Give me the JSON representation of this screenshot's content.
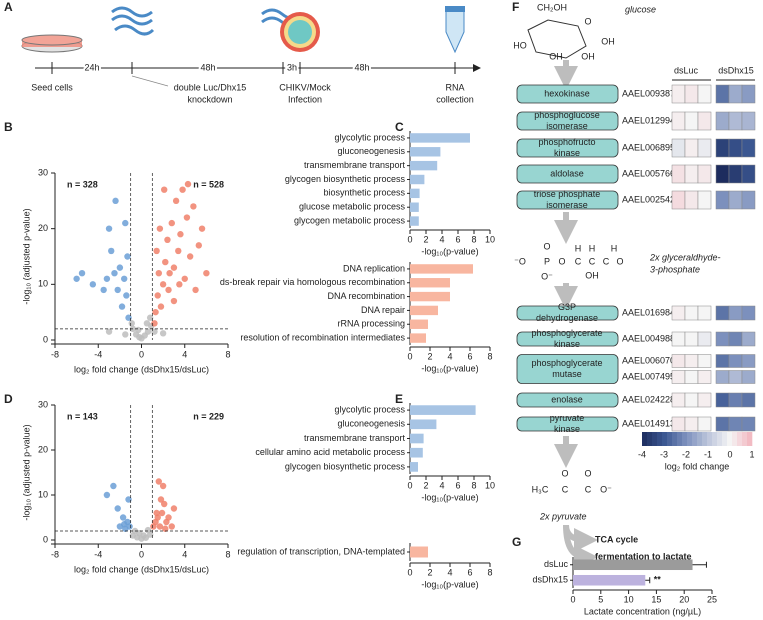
{
  "panel_labels": [
    "A",
    "B",
    "C",
    "D",
    "E",
    "F",
    "G"
  ],
  "timeline": {
    "steps": [
      [
        "Seed cells"
      ],
      [
        "double Luc/Dhx15",
        "knockdown"
      ],
      [
        "CHIKV/Mock",
        "Infection"
      ],
      [
        "RNA",
        "collection"
      ]
    ],
    "intervals": [
      "24h",
      "48h",
      "3h",
      "48h"
    ]
  },
  "pathway": {
    "glucose_atoms": [
      "CH₂OH",
      "O",
      "OH",
      "OH",
      "HO",
      "OH"
    ],
    "glucose": "glucose",
    "enzymes": [
      [
        "hexokinase"
      ],
      [
        "phosphoglucose",
        "isomerase"
      ],
      [
        "phosphofructo",
        "kinase"
      ],
      [
        "aldolase"
      ],
      [
        "triose phosphate",
        "isomerase"
      ],
      [
        "G3P",
        "dehydrogenase"
      ],
      [
        "phosphoglycerate",
        "kinase"
      ],
      [
        "phosphoglycerate",
        "mutase"
      ],
      [
        "enolase"
      ],
      [
        "pyruvate",
        "kinase"
      ]
    ],
    "g3p_atoms": [
      "O",
      "⁻O",
      "P",
      "O",
      "C",
      "C",
      "C",
      "H",
      "H",
      "H",
      "OH",
      "O",
      "O⁻"
    ],
    "g3p": [
      "2x glyceraldhyde-",
      "3-phosphate"
    ],
    "pyruvate_atoms": [
      "H₃C",
      "C",
      "C",
      "O",
      "O",
      "O⁻"
    ],
    "pyruvate": "2x pyruvate",
    "outputs": [
      "TCA cycle",
      "fermentation to lactate"
    ]
  },
  "chart_data": [
    {
      "type": "scatter",
      "xlabel": "log₂ fold change (dsDhx15/dsLuc)",
      "ylabel": "-log₁₀ (adjusted p-value)",
      "annotations": [
        "n = 328",
        "n = 528"
      ],
      "xlim": [
        -8,
        8
      ],
      "xticks": [
        -8,
        -4,
        0,
        4,
        8
      ],
      "ylim": [
        0,
        30
      ],
      "yticks": [
        0,
        10,
        20,
        30
      ],
      "vlines": [
        -1,
        1
      ],
      "hline": 2,
      "series": [
        {
          "color": "#bdbdbd",
          "x": [
            -0.8,
            -0.5,
            -0.2,
            0,
            0.3,
            0.6,
            0.9,
            -0.9,
            0.5,
            -0.3,
            1.2,
            -1.5,
            2,
            -3,
            0.8
          ],
          "y": [
            2,
            1,
            0.5,
            0.3,
            0.8,
            1.5,
            2.5,
            3,
            3,
            1.8,
            1.5,
            1,
            1.2,
            1.5,
            4
          ]
        },
        {
          "color": "#6b9fd6",
          "x": [
            -1.2,
            -1.4,
            -1.6,
            -1.8,
            -2,
            -2.2,
            -2.5,
            -2.8,
            -3,
            -3.2,
            -1.5,
            -4.5,
            -5.5,
            -6,
            -2.4,
            -1.3,
            -3.5
          ],
          "y": [
            4,
            8,
            11,
            6,
            13,
            9,
            12,
            16,
            20,
            11,
            21,
            10,
            12,
            11,
            25,
            15,
            9
          ]
        },
        {
          "color": "#f0806a",
          "x": [
            1.2,
            1.3,
            1.5,
            1.6,
            1.8,
            2,
            2.2,
            2.4,
            2.5,
            2.8,
            3,
            3.2,
            3.4,
            3.6,
            3.8,
            4,
            4.2,
            4.5,
            4.8,
            5,
            5.3,
            5.6,
            6,
            1.4,
            2.1,
            3,
            1.7,
            2.6,
            4.3,
            3.5
          ],
          "y": [
            3,
            5,
            8,
            12,
            6,
            10,
            14,
            18,
            9,
            21,
            13,
            25,
            16,
            19,
            27,
            11,
            22,
            15,
            24,
            9,
            17,
            20,
            12,
            16,
            27,
            7,
            20,
            12,
            28,
            10
          ]
        }
      ]
    },
    {
      "type": "bar",
      "orientation": "horizontal",
      "color": "#a7c4e4",
      "xlabel": "-log₁₀(p-value)",
      "xlim": [
        0,
        10
      ],
      "xticks": [
        0,
        2,
        4,
        6,
        8,
        10
      ],
      "categories": [
        "glycolytic process",
        "gluconeogenesis",
        "transmembrane transport",
        "glycogen biosynthetic process",
        "biosynthetic process",
        "glucose metabolic process",
        "glycogen metabolic process"
      ],
      "values": [
        7.5,
        3.8,
        3.4,
        1.8,
        1.2,
        1.1,
        1.1
      ]
    },
    {
      "type": "bar",
      "orientation": "horizontal",
      "color": "#f8b6a0",
      "xlabel": "-log₁₀(p-value)",
      "xlim": [
        0,
        8
      ],
      "xticks": [
        0,
        2,
        4,
        6,
        8
      ],
      "categories": [
        "DNA replication",
        "ds-break repair via homologous recombination",
        "DNA recombination",
        "DNA repair",
        "rRNA processing",
        "resolution of recombination intermediates"
      ],
      "values": [
        6.3,
        4,
        4,
        2.8,
        1.8,
        1.6
      ]
    },
    {
      "type": "scatter",
      "xlabel": "log₂ fold change (dsDhx15/dsLuc)",
      "ylabel": "-log₁₀ (adjusted p-value)",
      "annotations": [
        "n = 143",
        "n = 229"
      ],
      "xlim": [
        -8,
        8
      ],
      "xticks": [
        -8,
        -4,
        0,
        4,
        8
      ],
      "ylim": [
        0,
        30
      ],
      "yticks": [
        0,
        10,
        20,
        30
      ],
      "vlines": [
        -1,
        1
      ],
      "hline": 2,
      "series": [
        {
          "color": "#bdbdbd",
          "x": [
            -0.8,
            -0.4,
            0,
            0.4,
            0.8,
            -0.6,
            0.6,
            -0.2,
            0.2
          ],
          "y": [
            1,
            0.6,
            0.3,
            0.5,
            1.2,
            2,
            2.2,
            1.5,
            1
          ]
        },
        {
          "color": "#6b9fd6",
          "x": [
            -1.1,
            -1.3,
            -1.5,
            -1.7,
            -2,
            -1.2,
            -2.2,
            -3.2,
            -2.6,
            -1.6
          ],
          "y": [
            3,
            4,
            2.5,
            5,
            3,
            9,
            7,
            10,
            12,
            3.5
          ]
        },
        {
          "color": "#f0806a",
          "x": [
            1.1,
            1.3,
            1.5,
            1.7,
            1.9,
            2.1,
            2.3,
            2.5,
            1.8,
            2,
            1.6,
            3,
            2.2,
            1.4,
            2.8
          ],
          "y": [
            3,
            4,
            5,
            3,
            6,
            8,
            4,
            5,
            9,
            12,
            13,
            7,
            2.5,
            6,
            3
          ]
        }
      ]
    },
    {
      "type": "bar",
      "orientation": "horizontal",
      "color": "#a7c4e4",
      "xlabel": "-log₁₀(p-value)",
      "xlim": [
        0,
        10
      ],
      "xticks": [
        0,
        2,
        4,
        6,
        8,
        10
      ],
      "categories": [
        "glycolytic process",
        "gluconeogenesis",
        "transmembrane transport",
        "cellular amino acid metabolic process",
        "glycogen biosynthetic process"
      ],
      "values": [
        8.2,
        3.3,
        1.7,
        1.6,
        1
      ]
    },
    {
      "type": "bar",
      "orientation": "horizontal",
      "color": "#f8b6a0",
      "xlabel": "-log₁₀(p-value)",
      "xlim": [
        0,
        8
      ],
      "xticks": [
        0,
        2,
        4,
        6,
        8
      ],
      "categories": [
        "regulation of transcription, DNA-templated"
      ],
      "values": [
        1.8
      ]
    },
    {
      "type": "heatmap",
      "groups": [
        "dsLuc",
        "dsDhx15"
      ],
      "rows": [
        "AAEL009387",
        "AAEL012994",
        "AAEL006895",
        "AAEL005766",
        "AAEL002542",
        "AAEL016984",
        "AAEL004988",
        "AAEL006070",
        "AAEL007495",
        "AAEL024228",
        "AAEL014913"
      ],
      "values": [
        [
          0.1,
          0.2,
          0,
          -2.5,
          -1.5,
          -1.8
        ],
        [
          0.1,
          0,
          0.2,
          -1.5,
          -1.2,
          -1.3
        ],
        [
          -0.3,
          0.1,
          -0.2,
          -3.5,
          -3.2,
          -3
        ],
        [
          0.3,
          0.1,
          0.2,
          -4,
          -3.6,
          -3.2
        ],
        [
          0.4,
          0.2,
          0,
          -2,
          -1.5,
          -1.8
        ],
        [
          0.1,
          0,
          0,
          -2.5,
          -1.8,
          -2
        ],
        [
          0,
          0,
          -0.2,
          -2,
          -2.2,
          -1.5
        ],
        [
          0.2,
          0.1,
          0,
          -2.5,
          -2,
          -1.8
        ],
        [
          0.1,
          0,
          0.1,
          -1.5,
          -1.2,
          -1.5
        ],
        [
          0.1,
          0,
          0.1,
          -2.8,
          -2.3,
          -2.5
        ],
        [
          0.2,
          0.1,
          0,
          -2.5,
          -2.2,
          -2.2
        ]
      ],
      "colorscale": [
        [
          -4,
          "#1d2c5e"
        ],
        [
          -3,
          "#3b5791"
        ],
        [
          -2,
          "#7c90bd"
        ],
        [
          -1,
          "#bcc5db"
        ],
        [
          0,
          "#f5f5f5"
        ],
        [
          1,
          "#f2b3bd"
        ]
      ],
      "clim": [
        -4,
        1
      ],
      "cticks": [
        -4,
        -3,
        -2,
        -1,
        0,
        1
      ],
      "clabel": "log₂ fold change"
    },
    {
      "type": "bar",
      "orientation": "horizontal",
      "xlabel": "Lactate concentration (ng/µL)",
      "xlim": [
        0,
        25
      ],
      "xticks": [
        0,
        5,
        10,
        15,
        20,
        25
      ],
      "categories": [
        "dsLuc",
        "dsDhx15"
      ],
      "values": [
        21.5,
        13
      ],
      "errors": [
        2.5,
        0.8
      ],
      "colors": [
        "#9b9b9b",
        "#bcb2de"
      ],
      "annotation": "**"
    }
  ]
}
